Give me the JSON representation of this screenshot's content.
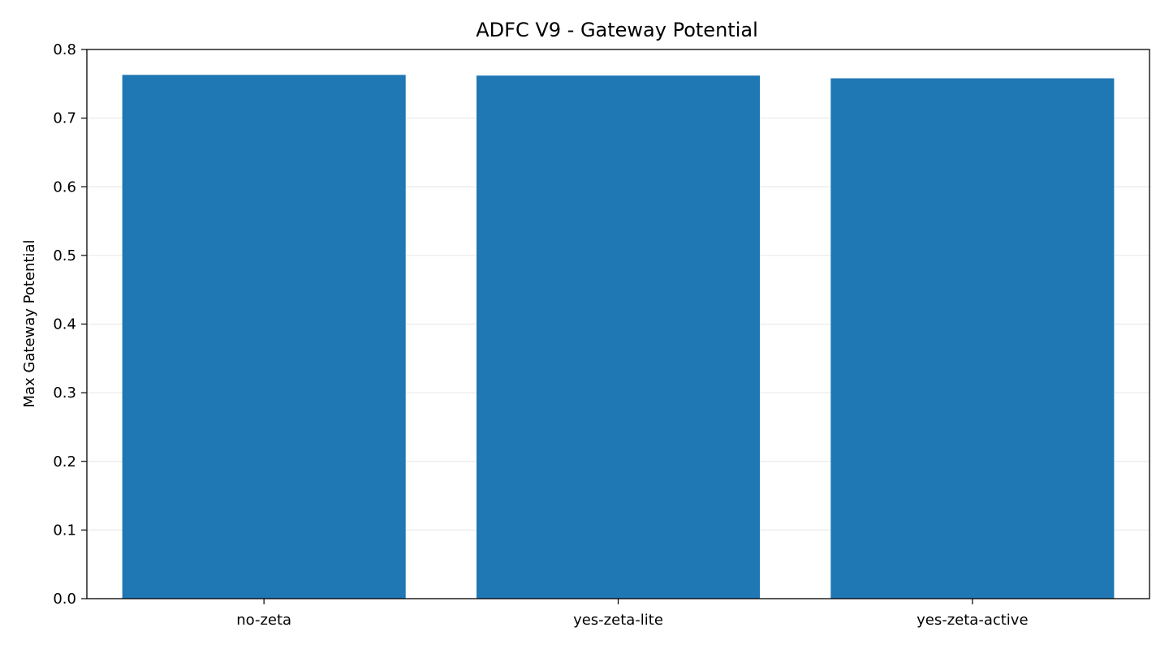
{
  "chart_data": {
    "type": "bar",
    "title": "ADFC V9 - Gateway Potential",
    "xlabel": "",
    "ylabel": "Max Gateway Potential",
    "categories": [
      "no-zeta",
      "yes-zeta-lite",
      "yes-zeta-active"
    ],
    "values": [
      0.763,
      0.762,
      0.758
    ],
    "ylim": [
      0.0,
      0.8
    ],
    "yticks": [
      "0.0",
      "0.1",
      "0.2",
      "0.3",
      "0.4",
      "0.5",
      "0.6",
      "0.7",
      "0.8"
    ],
    "grid": "horizontal",
    "legend": "none",
    "colors": {
      "bar": "#1f77b4",
      "grid": "#e6e6e6",
      "axis": "#000000"
    }
  }
}
